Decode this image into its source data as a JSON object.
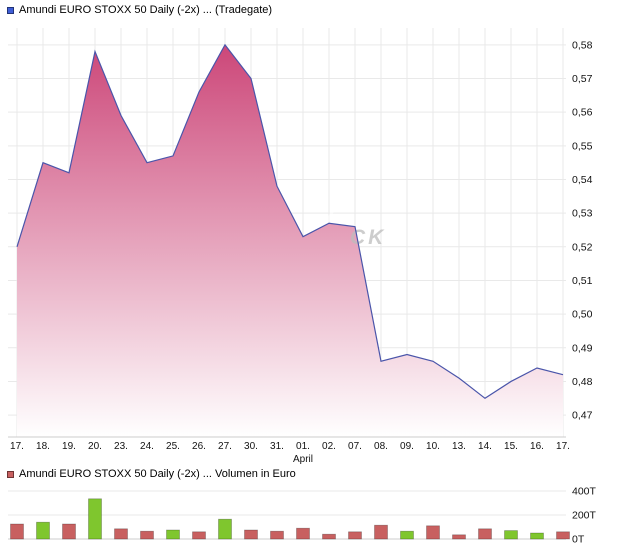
{
  "header": {
    "title": "Amundi EURO STOXX 50 Daily (-2x) ... (Tradegate)"
  },
  "volume_header": {
    "title": "Amundi EURO STOXX 50 Daily (-2x) ... Volumen in Euro"
  },
  "watermark": {
    "slash": "/",
    "text": "CK"
  },
  "colors": {
    "price_line": "#4a55aa",
    "price_fill_top": "#ca3f73",
    "price_fill_bottom": "#ffffff",
    "volume_up": "#7fc62e",
    "volume_down": "#c86060",
    "grid": "#e9e9e9",
    "axis_line": "#cccccc",
    "axis_text": "#111111",
    "price_legend_square": "#3f5ed7",
    "volume_legend_square": "#c86060"
  },
  "chart_data": [
    {
      "type": "area",
      "title": "Amundi EURO STOXX 50 Daily (-2x) ... (Tradegate)",
      "x": [
        "17.",
        "18.",
        "19.",
        "20.",
        "23.",
        "24.",
        "25.",
        "26.",
        "27.",
        "30.",
        "31.",
        "01.",
        "02.",
        "07.",
        "08.",
        "09.",
        "10.",
        "13.",
        "14.",
        "15.",
        "16.",
        "17."
      ],
      "month_label": "April",
      "month_label_index": 11,
      "values": [
        0.52,
        0.545,
        0.542,
        0.578,
        0.559,
        0.545,
        0.547,
        0.566,
        0.58,
        0.57,
        0.538,
        0.523,
        0.527,
        0.526,
        0.486,
        0.488,
        0.486,
        0.481,
        0.475,
        0.48,
        0.484,
        0.482
      ],
      "ylim": [
        0.4635,
        0.585
      ],
      "yticks": [
        0.47,
        0.48,
        0.49,
        0.5,
        0.51,
        0.52,
        0.53,
        0.54,
        0.55,
        0.56,
        0.57,
        0.58
      ],
      "ytick_labels": [
        "0,47",
        "0,48",
        "0,49",
        "0,50",
        "0,51",
        "0,52",
        "0,53",
        "0,54",
        "0,55",
        "0,56",
        "0,57",
        "0,58"
      ],
      "grid": true,
      "legend_position": "top-left",
      "xlabel": "",
      "ylabel": ""
    },
    {
      "type": "bar",
      "title": "Amundi EURO STOXX 50 Daily (-2x) ... Volumen in Euro",
      "categories": [
        "17.",
        "18.",
        "19.",
        "20.",
        "23.",
        "24.",
        "25.",
        "26.",
        "27.",
        "30.",
        "31.",
        "01.",
        "02.",
        "07.",
        "08.",
        "09.",
        "10.",
        "13.",
        "14.",
        "15.",
        "16.",
        "17."
      ],
      "values_thousands": [
        125,
        140,
        125,
        335,
        85,
        65,
        75,
        60,
        165,
        75,
        65,
        90,
        40,
        60,
        115,
        65,
        110,
        35,
        85,
        70,
        50,
        60
      ],
      "directions": [
        "down",
        "up",
        "down",
        "up",
        "down",
        "down",
        "up",
        "down",
        "up",
        "down",
        "down",
        "down",
        "down",
        "down",
        "down",
        "up",
        "down",
        "down",
        "down",
        "up",
        "up",
        "down"
      ],
      "yticks": [
        0,
        200,
        400
      ],
      "ytick_labels": [
        "0T",
        "200T",
        "400T"
      ],
      "ylim": [
        0,
        475
      ],
      "unit": "T (Tausend Euro)"
    }
  ]
}
